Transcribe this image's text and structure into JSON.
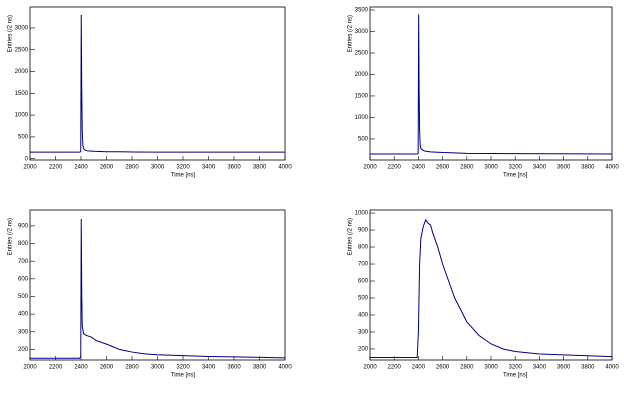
{
  "chart_data": [
    {
      "type": "line",
      "x_label": "Time [ns]",
      "y_label": "Entries (/2 ns)",
      "color": "#000080",
      "xlim": [
        2000,
        4000
      ],
      "xticks": [
        2000,
        2200,
        2400,
        2600,
        2800,
        3000,
        3200,
        3400,
        3600,
        3800,
        4000
      ],
      "ylim": [
        -30,
        3480
      ],
      "yticks": [
        0,
        500,
        1000,
        1500,
        2000,
        2500,
        3000
      ],
      "x": [
        2000,
        2200,
        2390,
        2398,
        2402,
        2406,
        2410,
        2415,
        2420,
        2430,
        2450,
        2500,
        2600,
        2700,
        2800,
        3000,
        3500,
        4000
      ],
      "values": [
        150,
        150,
        150,
        160,
        3300,
        1500,
        600,
        300,
        230,
        200,
        180,
        170,
        160,
        160,
        155,
        150,
        150,
        150
      ]
    },
    {
      "type": "line",
      "x_label": "Time [ns]",
      "y_label": "Entries (/2 ns)",
      "color": "#000080",
      "xlim": [
        2000,
        4000
      ],
      "xticks": [
        2000,
        2200,
        2400,
        2600,
        2800,
        3000,
        3200,
        3400,
        3600,
        3800,
        4000
      ],
      "ylim": [
        10,
        3570
      ],
      "yticks": [
        500,
        1000,
        1500,
        2000,
        2500,
        3000,
        3500
      ],
      "x": [
        2000,
        2200,
        2390,
        2398,
        2402,
        2406,
        2410,
        2415,
        2420,
        2430,
        2450,
        2500,
        2600,
        2700,
        2800,
        3000,
        3500,
        4000
      ],
      "values": [
        150,
        150,
        150,
        160,
        3400,
        1600,
        700,
        350,
        280,
        250,
        220,
        200,
        185,
        175,
        165,
        160,
        155,
        150
      ]
    },
    {
      "type": "line",
      "x_label": "Time [ns]",
      "y_label": "Entries (/2 ns)",
      "color": "#000080",
      "xlim": [
        2000,
        4000
      ],
      "xticks": [
        2000,
        2200,
        2400,
        2600,
        2800,
        3000,
        3200,
        3400,
        3600,
        3800,
        4000
      ],
      "ylim": [
        140,
        990
      ],
      "yticks": [
        200,
        300,
        400,
        500,
        600,
        700,
        800,
        900
      ],
      "x": [
        2000,
        2200,
        2390,
        2398,
        2402,
        2406,
        2410,
        2420,
        2440,
        2480,
        2520,
        2560,
        2600,
        2650,
        2700,
        2800,
        2900,
        3000,
        3200,
        3400,
        3600,
        3800,
        4000
      ],
      "values": [
        150,
        150,
        150,
        160,
        940,
        500,
        330,
        290,
        280,
        270,
        250,
        240,
        230,
        215,
        200,
        185,
        175,
        170,
        165,
        160,
        158,
        155,
        152
      ]
    },
    {
      "type": "line",
      "x_label": "Time [ns]",
      "y_label": "Entries (/2 ns)",
      "color": "#000080",
      "xlim": [
        2000,
        4000
      ],
      "xticks": [
        2000,
        2200,
        2400,
        2600,
        2800,
        3000,
        3200,
        3400,
        3600,
        3800,
        4000
      ],
      "ylim": [
        135,
        1018
      ],
      "yticks": [
        200,
        300,
        400,
        500,
        600,
        700,
        800,
        900,
        1000
      ],
      "x": [
        2000,
        2200,
        2390,
        2400,
        2410,
        2420,
        2440,
        2460,
        2480,
        2500,
        2520,
        2560,
        2600,
        2650,
        2700,
        2750,
        2800,
        2850,
        2900,
        3000,
        3100,
        3200,
        3400,
        3600,
        3800,
        4000
      ],
      "values": [
        150,
        150,
        150,
        300,
        700,
        850,
        920,
        960,
        940,
        930,
        880,
        800,
        700,
        600,
        500,
        430,
        360,
        320,
        280,
        230,
        200,
        185,
        170,
        165,
        160,
        155
      ]
    }
  ]
}
